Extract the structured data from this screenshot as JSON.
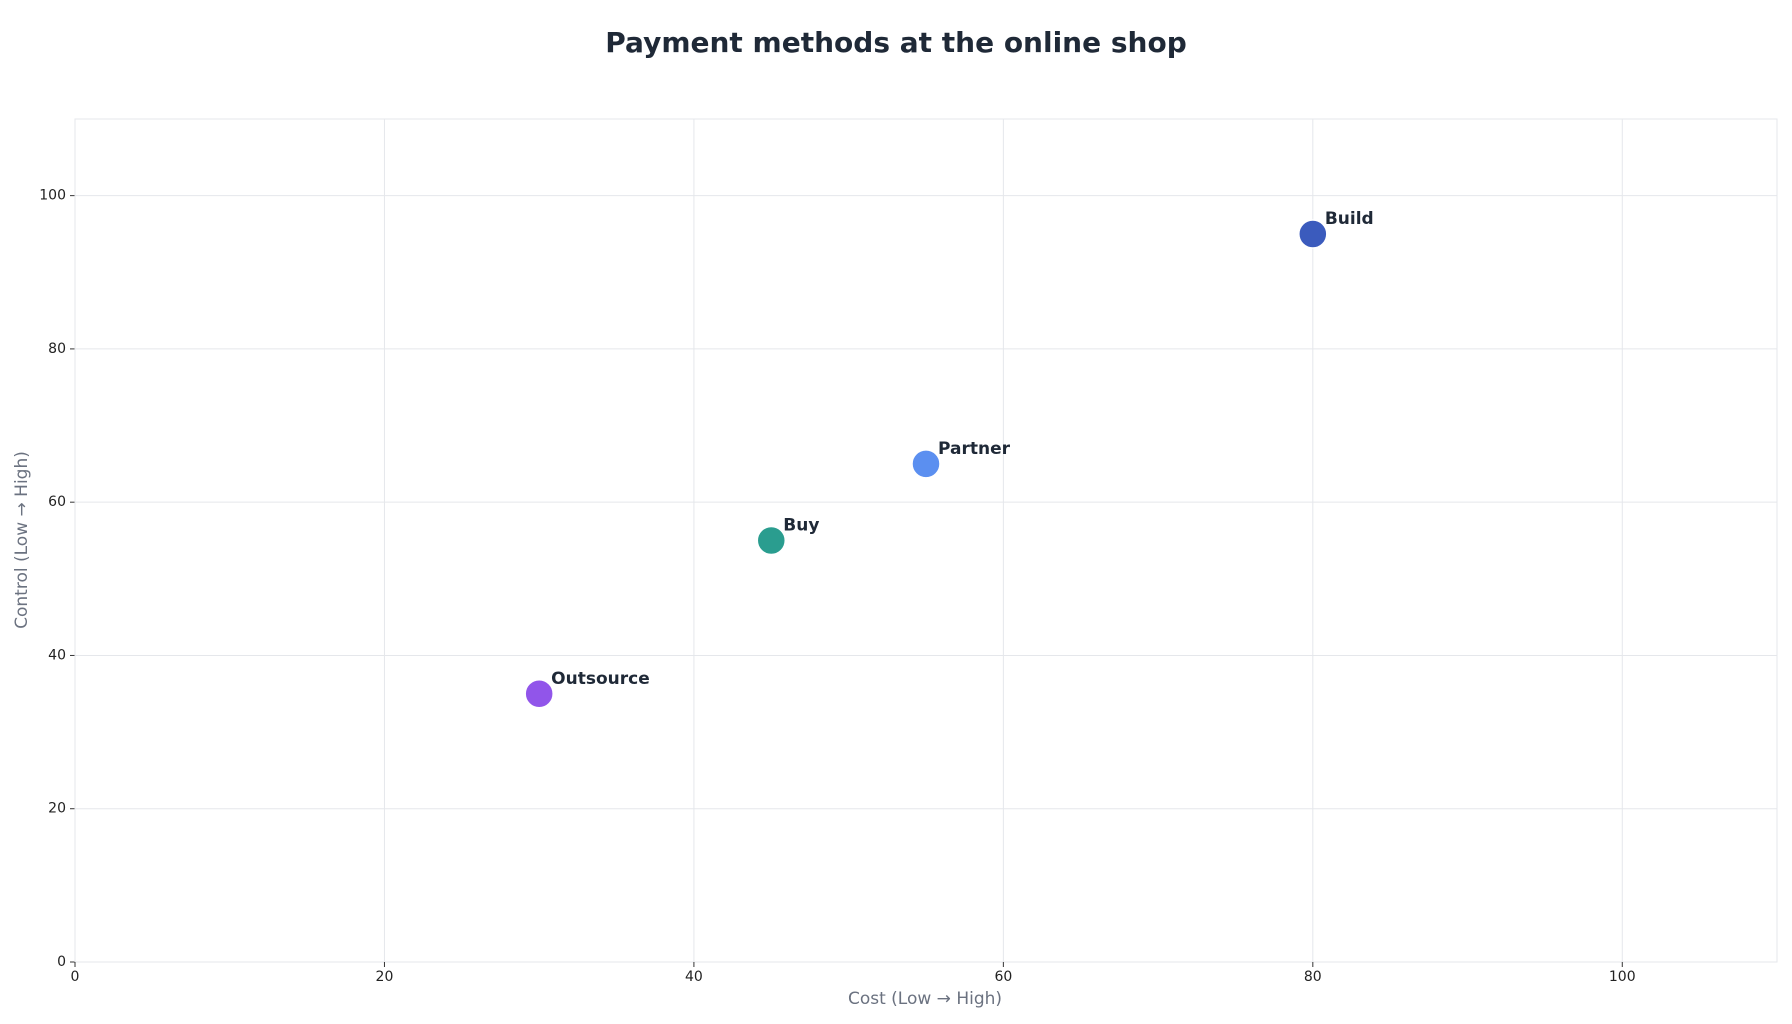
{
  "chart_data": {
    "type": "scatter",
    "title": "Payment methods at the online shop",
    "x_label": "Cost (Low → High)",
    "y_label": "Control (Low → High)",
    "labels": [
      "Build",
      "Partner",
      "Buy",
      "Outsource"
    ],
    "x": [
      80,
      55,
      45,
      30
    ],
    "values": [
      95,
      65,
      55,
      35
    ],
    "colors": [
      "#3b5bbd",
      "#5b8ff0",
      "#2a9d8f",
      "#9155ea"
    ],
    "xlim": [
      0,
      110
    ],
    "ylim": [
      0,
      110
    ],
    "xticks": [
      0,
      20,
      40,
      60,
      80,
      100
    ],
    "yticks": [
      0,
      20,
      40,
      60,
      80,
      100
    ],
    "grid": true
  }
}
